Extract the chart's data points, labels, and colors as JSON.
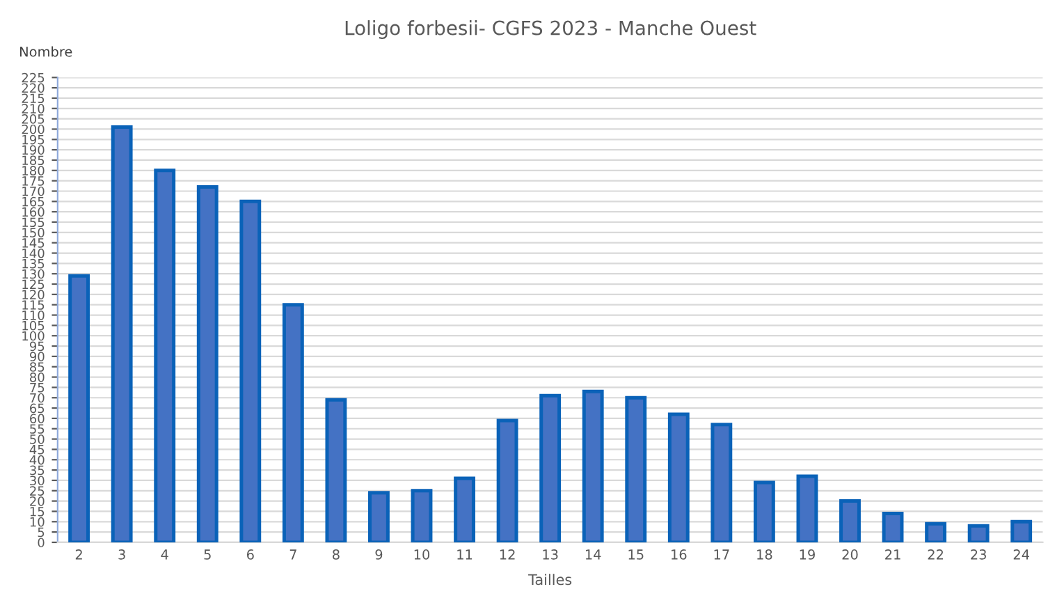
{
  "chart_data": {
    "type": "bar",
    "title": "Loligo forbesii- CGFS 2023 - Manche Ouest",
    "xlabel": "Tailles",
    "ylabel": "Nombre",
    "categories": [
      "2",
      "3",
      "4",
      "5",
      "6",
      "7",
      "8",
      "9",
      "10",
      "11",
      "12",
      "13",
      "14",
      "15",
      "16",
      "17",
      "18",
      "19",
      "20",
      "21",
      "22",
      "23",
      "24"
    ],
    "values": [
      129,
      201,
      180,
      172,
      165,
      115,
      69,
      24,
      25,
      31,
      59,
      71,
      73,
      70,
      62,
      57,
      29,
      32,
      20,
      14,
      9,
      8,
      10
    ],
    "color": "#4472c4",
    "ylim": [
      0,
      225
    ],
    "yticks": [
      0,
      5,
      10,
      15,
      20,
      25,
      30,
      35,
      40,
      45,
      50,
      55,
      60,
      65,
      70,
      75,
      80,
      85,
      90,
      95,
      100,
      105,
      110,
      115,
      120,
      125,
      130,
      135,
      140,
      145,
      150,
      155,
      160,
      165,
      170,
      175,
      180,
      185,
      190,
      195,
      200,
      205,
      210,
      215,
      220,
      225
    ],
    "grid": "y",
    "legend": false
  }
}
